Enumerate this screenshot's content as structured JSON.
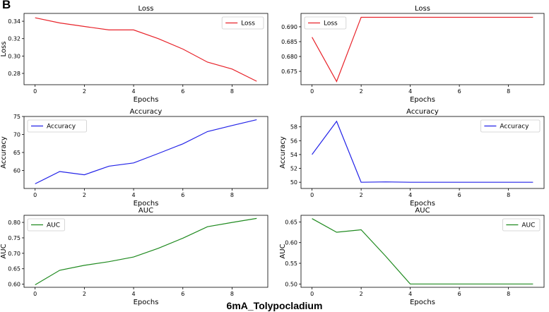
{
  "panel_letter": "B",
  "caption": "6mA_Tolypocladium",
  "chart_data": [
    {
      "type": "line",
      "title": "Loss",
      "xlabel": "Epochs",
      "ylabel": "Loss",
      "x": [
        0,
        1,
        2,
        3,
        4,
        5,
        6,
        7,
        8,
        9
      ],
      "xticks": [
        0,
        2,
        4,
        6,
        8
      ],
      "xlim": [
        -0.45,
        9.45
      ],
      "yticks": [
        0.28,
        0.3,
        0.32,
        0.34
      ],
      "ytick_labels": [
        "0.28",
        "0.30",
        "0.32",
        "0.34"
      ],
      "ylim": [
        0.267,
        0.349
      ],
      "legend_position": "top-right",
      "series": [
        {
          "name": "Loss",
          "color": "#e8232a",
          "values": [
            0.344,
            0.338,
            0.334,
            0.33,
            0.33,
            0.32,
            0.308,
            0.293,
            0.285,
            0.271
          ]
        }
      ]
    },
    {
      "type": "line",
      "title": "Loss",
      "xlabel": "Epochs",
      "ylabel": "",
      "x": [
        0,
        1,
        2,
        3,
        4,
        5,
        6,
        7,
        8,
        9
      ],
      "xticks": [
        0,
        2,
        4,
        6,
        8
      ],
      "xlim": [
        -0.45,
        9.45
      ],
      "yticks": [
        0.675,
        0.68,
        0.685,
        0.69
      ],
      "ytick_labels": [
        "0.675",
        "0.680",
        "0.685",
        "0.690"
      ],
      "ylim": [
        0.6705,
        0.6945
      ],
      "legend_position": "top-left",
      "series": [
        {
          "name": "Loss",
          "color": "#e8232a",
          "values": [
            0.6865,
            0.6716,
            0.6932,
            0.6932,
            0.6932,
            0.6932,
            0.6932,
            0.6932,
            0.6932,
            0.6932
          ]
        }
      ]
    },
    {
      "type": "line",
      "title": "Accuracy",
      "xlabel": "Epochs",
      "ylabel": "Accuracy",
      "x": [
        0,
        1,
        2,
        3,
        4,
        5,
        6,
        7,
        8,
        9
      ],
      "xticks": [
        0,
        2,
        4,
        6,
        8
      ],
      "xlim": [
        -0.45,
        9.45
      ],
      "yticks": [
        60,
        65,
        70,
        75
      ],
      "ytick_labels": [
        "60",
        "65",
        "70",
        "75"
      ],
      "ylim": [
        55.0,
        75.0
      ],
      "legend_position": "top-left",
      "series": [
        {
          "name": "Accuracy",
          "color": "#2323e8",
          "values": [
            56.3,
            59.7,
            58.8,
            61.2,
            62.1,
            64.7,
            67.4,
            70.8,
            72.5,
            74.1
          ]
        }
      ]
    },
    {
      "type": "line",
      "title": "Accuracy",
      "xlabel": "Epochs",
      "ylabel": "Accuracy",
      "x": [
        0,
        1,
        2,
        3,
        4,
        5,
        6,
        7,
        8,
        9
      ],
      "xticks": [
        0,
        2,
        4,
        6,
        8
      ],
      "xlim": [
        -0.45,
        9.45
      ],
      "yticks": [
        50,
        52,
        54,
        56,
        58
      ],
      "ytick_labels": [
        "50",
        "52",
        "54",
        "56",
        "58"
      ],
      "ylim": [
        49.1,
        59.5
      ],
      "legend_position": "top-right",
      "series": [
        {
          "name": "Accuracy",
          "color": "#2323e8",
          "values": [
            54.0,
            58.8,
            50.0,
            50.05,
            50.0,
            50.0,
            50.0,
            50.0,
            50.0,
            50.0
          ]
        }
      ]
    },
    {
      "type": "line",
      "title": "AUC",
      "xlabel": "Epochs",
      "ylabel": "AUC",
      "x": [
        0,
        1,
        2,
        3,
        4,
        5,
        6,
        7,
        8,
        9
      ],
      "xticks": [
        0,
        2,
        4,
        6,
        8
      ],
      "xlim": [
        -0.45,
        9.45
      ],
      "yticks": [
        0.6,
        0.65,
        0.7,
        0.75,
        0.8
      ],
      "ytick_labels": [
        "0.60",
        "0.65",
        "0.70",
        "0.75",
        "0.80"
      ],
      "ylim": [
        0.59,
        0.823
      ],
      "legend_position": "top-left",
      "series": [
        {
          "name": "AUC",
          "color": "#1f8a1f",
          "values": [
            0.598,
            0.645,
            0.661,
            0.673,
            0.688,
            0.716,
            0.749,
            0.786,
            0.8,
            0.813
          ]
        }
      ]
    },
    {
      "type": "line",
      "title": "AUC",
      "xlabel": "Epochs",
      "ylabel": "AUC",
      "x": [
        0,
        1,
        2,
        3,
        4,
        5,
        6,
        7,
        8,
        9
      ],
      "xticks": [
        0,
        2,
        4,
        6,
        8
      ],
      "xlim": [
        -0.45,
        9.45
      ],
      "yticks": [
        0.5,
        0.55,
        0.6,
        0.65
      ],
      "ytick_labels": [
        "0.50",
        "0.55",
        "0.60",
        "0.65"
      ],
      "ylim": [
        0.492,
        0.666
      ],
      "legend_position": "top-right",
      "series": [
        {
          "name": "AUC",
          "color": "#1f8a1f",
          "values": [
            0.658,
            0.625,
            0.631,
            0.567,
            0.5,
            0.5,
            0.5,
            0.5,
            0.5,
            0.5
          ]
        }
      ]
    }
  ]
}
